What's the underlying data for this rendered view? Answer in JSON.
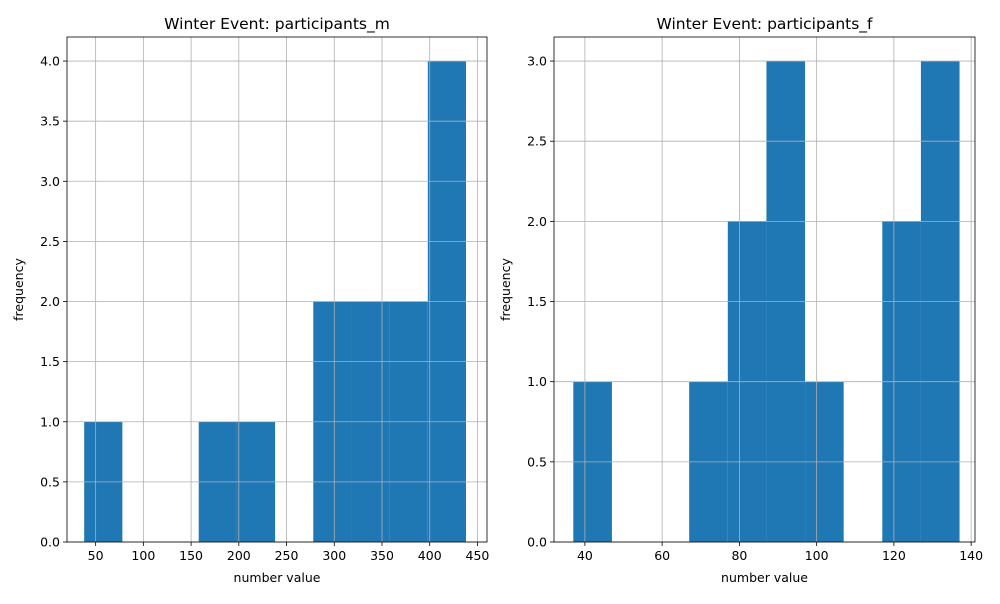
{
  "colors": {
    "bar": "#1f77b4",
    "grid": "#b0b0b0",
    "axis": "#000000",
    "background": "#ffffff"
  },
  "chart_data": [
    {
      "type": "bar",
      "title": "Winter Event: participants_m",
      "xlabel": "number value",
      "ylabel": "frequency",
      "xlim": [
        20,
        460
      ],
      "ylim": [
        0,
        4.2
      ],
      "xticks": [
        50,
        100,
        150,
        200,
        250,
        300,
        350,
        400,
        450
      ],
      "yticks": [
        0.0,
        0.5,
        1.0,
        1.5,
        2.0,
        2.5,
        3.0,
        3.5,
        4.0
      ],
      "xtick_labels": [
        "50",
        "100",
        "150",
        "200",
        "250",
        "300",
        "350",
        "400",
        "450"
      ],
      "ytick_labels": [
        "0.0",
        "0.5",
        "1.0",
        "1.5",
        "2.0",
        "2.5",
        "3.0",
        "3.5",
        "4.0"
      ],
      "grid": true,
      "bins": [
        {
          "x0": 38,
          "x1": 78,
          "count": 1
        },
        {
          "x0": 78,
          "x1": 118,
          "count": 0
        },
        {
          "x0": 118,
          "x1": 158,
          "count": 0
        },
        {
          "x0": 158,
          "x1": 198,
          "count": 1
        },
        {
          "x0": 198,
          "x1": 238,
          "count": 1
        },
        {
          "x0": 238,
          "x1": 278,
          "count": 0
        },
        {
          "x0": 278,
          "x1": 318,
          "count": 2
        },
        {
          "x0": 318,
          "x1": 358,
          "count": 2
        },
        {
          "x0": 358,
          "x1": 398,
          "count": 2
        },
        {
          "x0": 398,
          "x1": 438,
          "count": 4
        }
      ]
    },
    {
      "type": "bar",
      "title": "Winter Event: participants_f",
      "xlabel": "number value",
      "ylabel": "frequency",
      "xlim": [
        32,
        141
      ],
      "ylim": [
        0,
        3.15
      ],
      "xticks": [
        40,
        60,
        80,
        100,
        120,
        140
      ],
      "yticks": [
        0.0,
        0.5,
        1.0,
        1.5,
        2.0,
        2.5,
        3.0
      ],
      "xtick_labels": [
        "40",
        "60",
        "80",
        "100",
        "120",
        "140"
      ],
      "ytick_labels": [
        "0.0",
        "0.5",
        "1.0",
        "1.5",
        "2.0",
        "2.5",
        "3.0"
      ],
      "grid": true,
      "bins": [
        {
          "x0": 37,
          "x1": 47,
          "count": 1
        },
        {
          "x0": 47,
          "x1": 57,
          "count": 0
        },
        {
          "x0": 57,
          "x1": 67,
          "count": 0
        },
        {
          "x0": 67,
          "x1": 77,
          "count": 1
        },
        {
          "x0": 77,
          "x1": 87,
          "count": 2
        },
        {
          "x0": 87,
          "x1": 97,
          "count": 3
        },
        {
          "x0": 97,
          "x1": 107,
          "count": 1
        },
        {
          "x0": 107,
          "x1": 117,
          "count": 0
        },
        {
          "x0": 117,
          "x1": 127,
          "count": 2
        },
        {
          "x0": 127,
          "x1": 137,
          "count": 3
        }
      ]
    }
  ]
}
